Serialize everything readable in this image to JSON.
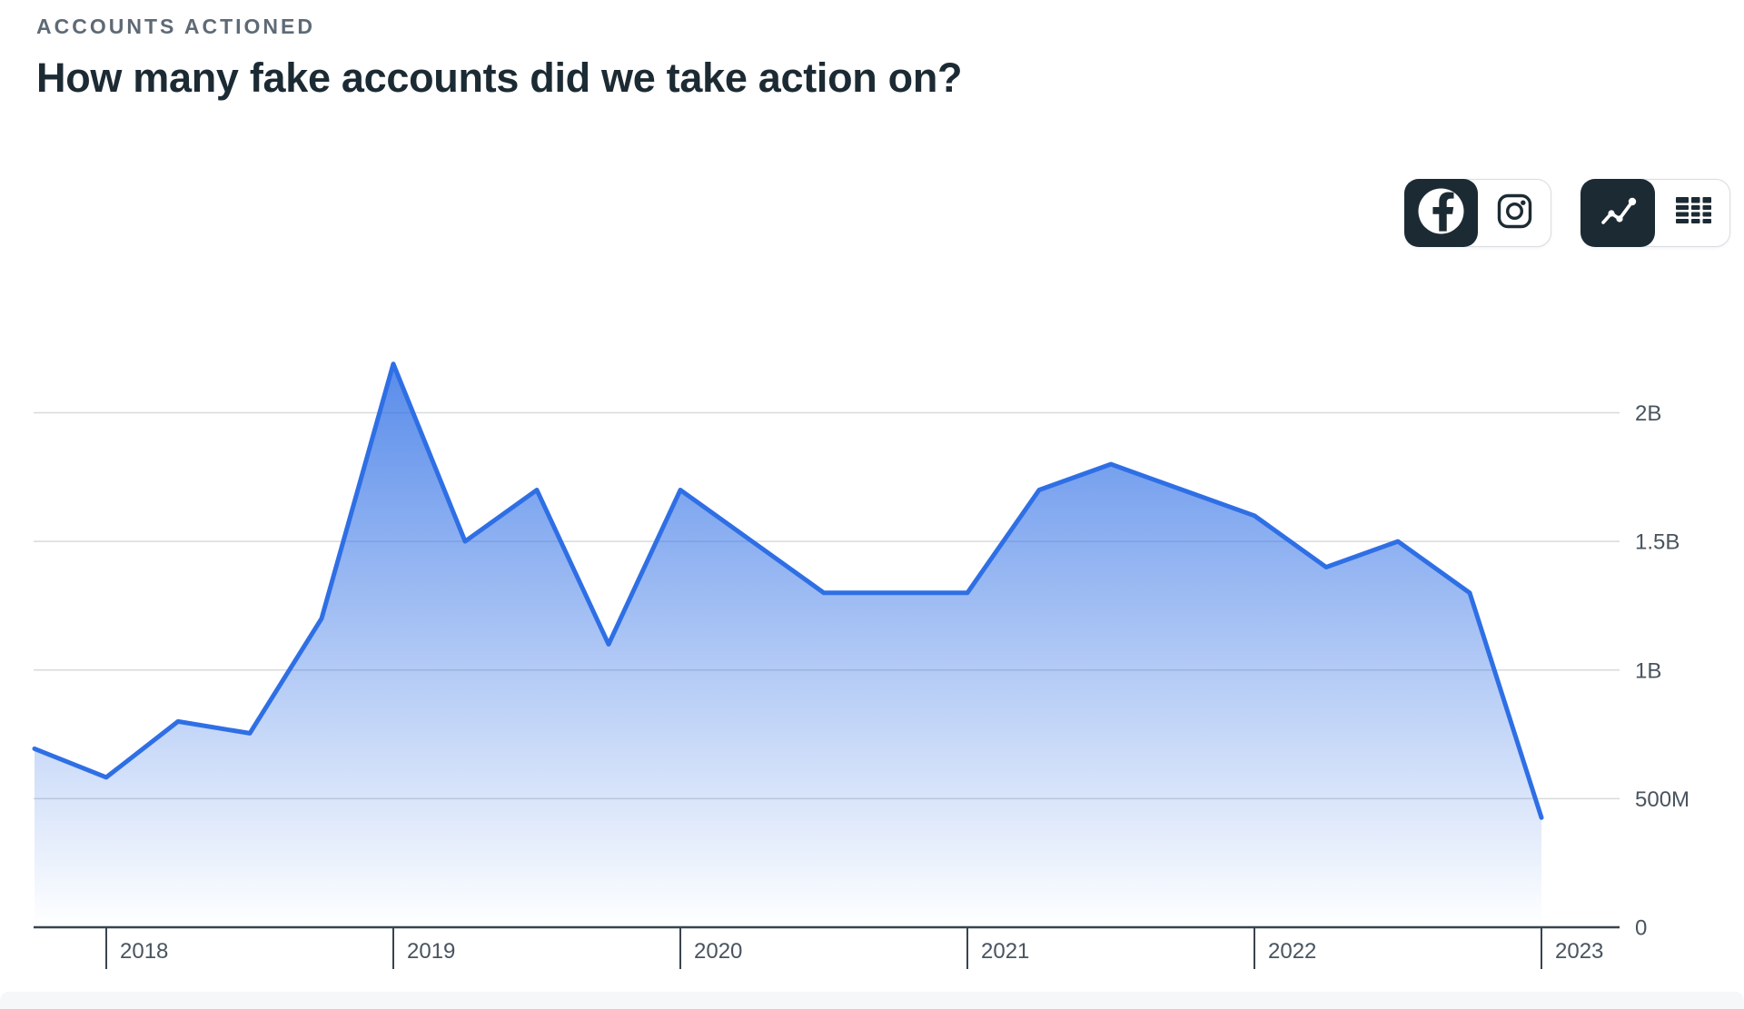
{
  "header": {
    "eyebrow": "ACCOUNTS ACTIONED",
    "title": "How many fake accounts did we take action on?"
  },
  "toolbar": {
    "platform_group": {
      "items": [
        {
          "id": "facebook",
          "icon": "facebook-icon",
          "selected": true
        },
        {
          "id": "instagram",
          "icon": "instagram-icon",
          "selected": false
        }
      ]
    },
    "view_group": {
      "items": [
        {
          "id": "chart-view",
          "icon": "line-chart-icon",
          "selected": true
        },
        {
          "id": "table-view",
          "icon": "table-icon",
          "selected": false
        }
      ]
    }
  },
  "colors": {
    "accent_blue": "#2F6FE5",
    "dark": "#1C2B33",
    "grid_line": "#D8DADD",
    "axis_line": "#39444E",
    "axis_label": "#49545F",
    "eyebrow_text": "#5E6A76",
    "fill_gradient_top": "rgba(47,111,229,0.8)",
    "fill_gradient_bottom": "rgba(47,111,229,0)"
  },
  "chart_data": {
    "type": "area",
    "title": "How many fake accounts did we take action on?",
    "grid": "horizontal",
    "legend": "none",
    "ylim_millions": [
      0,
      2300
    ],
    "series": [
      {
        "name": "Fake accounts actioned",
        "unit": "accounts",
        "x": [
          "2017 Q4",
          "2018 Q1",
          "2018 Q2",
          "2018 Q3",
          "2018 Q4",
          "2019 Q1",
          "2019 Q2",
          "2019 Q3",
          "2019 Q4",
          "2020 Q1",
          "2020 Q2",
          "2020 Q3",
          "2020 Q4",
          "2021 Q1",
          "2021 Q2",
          "2021 Q3",
          "2021 Q4",
          "2022 Q1",
          "2022 Q2",
          "2022 Q3",
          "2022 Q4",
          "2023 Q1"
        ],
        "values_millions": [
          694,
          583,
          800,
          754,
          1200,
          2190,
          1500,
          1700,
          1100,
          1700,
          1500,
          1300,
          1300,
          1300,
          1700,
          1800,
          1700,
          1600,
          1400,
          1500,
          1300,
          426
        ]
      }
    ],
    "x_axis": {
      "tick_labels": [
        "2018",
        "2019",
        "2020",
        "2021",
        "2022",
        "2023"
      ],
      "tick_point_indices": [
        1,
        5,
        9,
        13,
        17,
        21
      ]
    },
    "y_axis": {
      "side": "right",
      "tick_labels": [
        "2B",
        "1.5B",
        "1B",
        "500M",
        "0"
      ],
      "tick_values_millions": [
        2000,
        1500,
        1000,
        500,
        0
      ]
    }
  }
}
